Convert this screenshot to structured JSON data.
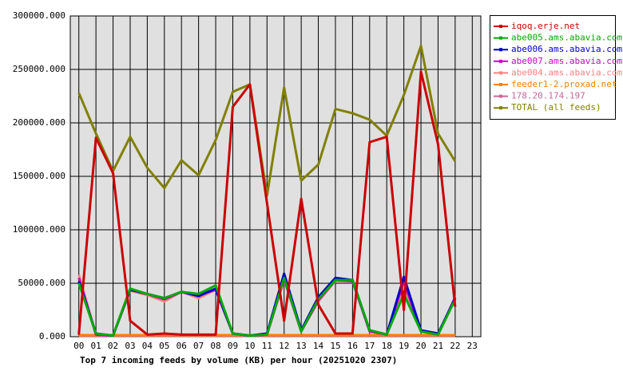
{
  "chart_data": {
    "type": "line",
    "title": "Top 7 incoming feeds by volume (KB) per hour (20251020 2307)",
    "categories": [
      "00",
      "01",
      "02",
      "03",
      "04",
      "05",
      "06",
      "07",
      "08",
      "09",
      "10",
      "11",
      "12",
      "13",
      "14",
      "15",
      "16",
      "17",
      "18",
      "19",
      "20",
      "21",
      "22",
      "23"
    ],
    "ylim": [
      0,
      300000
    ],
    "yticks": [
      {
        "value": 0,
        "label": "0.000"
      },
      {
        "value": 50000,
        "label": "50000.000"
      },
      {
        "value": 100000,
        "label": "100000.000"
      },
      {
        "value": 150000,
        "label": "150000.000"
      },
      {
        "value": 200000,
        "label": "200000.000"
      },
      {
        "value": 250000,
        "label": "250000.000"
      },
      {
        "value": 300000,
        "label": "300000.000"
      }
    ],
    "grid": true,
    "legend": "right",
    "series": [
      {
        "name": "iqoq.erje.net",
        "color": "#cc0000",
        "values": [
          2000,
          186000,
          153000,
          15000,
          2000,
          3000,
          2000,
          2000,
          2000,
          215000,
          236000,
          125000,
          15000,
          129000,
          30000,
          3000,
          3000,
          182000,
          187000,
          25000,
          248000,
          180000,
          28000,
          null
        ]
      },
      {
        "name": "abe005.ams.abavia.com",
        "color": "#00aa00",
        "values": [
          50000,
          3000,
          1000,
          45000,
          40000,
          36000,
          42000,
          40000,
          48000,
          3000,
          1000,
          2000,
          55000,
          5000,
          35000,
          53000,
          53000,
          6000,
          2000,
          40000,
          5000,
          2000,
          35000,
          null
        ]
      },
      {
        "name": "abe006.ams.abavia.com",
        "color": "#0000cc",
        "values": [
          52000,
          3000,
          1000,
          44000,
          40000,
          36000,
          42000,
          38000,
          45000,
          3000,
          1000,
          3000,
          59000,
          6000,
          37000,
          55000,
          53000,
          6000,
          2000,
          56000,
          6000,
          3000,
          36000,
          null
        ]
      },
      {
        "name": "abe007.ams.abavia.com",
        "color": "#cc00cc",
        "values": [
          55000,
          2000,
          1000,
          44000,
          40000,
          35000,
          42000,
          39000,
          44000,
          3000,
          1000,
          2000,
          54000,
          5000,
          34000,
          53000,
          52000,
          5000,
          2000,
          52000,
          5000,
          2000,
          37000,
          null
        ]
      },
      {
        "name": "abe004.ams.abavia.com",
        "color": "#ff8080",
        "values": [
          58000,
          2000,
          1000,
          43000,
          39000,
          33000,
          42000,
          36000,
          44000,
          3000,
          1000,
          2000,
          53000,
          5000,
          33000,
          52000,
          52000,
          5000,
          2000,
          47000,
          5000,
          2000,
          35000,
          null
        ]
      },
      {
        "name": "feeder1-2.proxad.net",
        "color": "#ff8000",
        "values": [
          1500,
          1500,
          1500,
          1500,
          1500,
          1500,
          1500,
          1500,
          1500,
          1500,
          1500,
          1500,
          1500,
          1500,
          1500,
          1500,
          1500,
          1500,
          1500,
          1500,
          1500,
          1500,
          1500,
          null
        ]
      },
      {
        "name": "178.20.174.197",
        "color": "#cc6699",
        "values": [
          800,
          800,
          800,
          800,
          800,
          800,
          800,
          800,
          800,
          800,
          800,
          800,
          800,
          800,
          800,
          800,
          800,
          800,
          800,
          800,
          800,
          800,
          800,
          null
        ]
      },
      {
        "name": "TOTAL (all feeds)",
        "color": "#808000",
        "values": [
          228000,
          190000,
          155000,
          187000,
          158000,
          139000,
          165000,
          151000,
          184000,
          229000,
          236000,
          132000,
          233000,
          146000,
          161000,
          213000,
          209000,
          203000,
          188000,
          226000,
          272000,
          190000,
          164000,
          null
        ]
      }
    ]
  }
}
